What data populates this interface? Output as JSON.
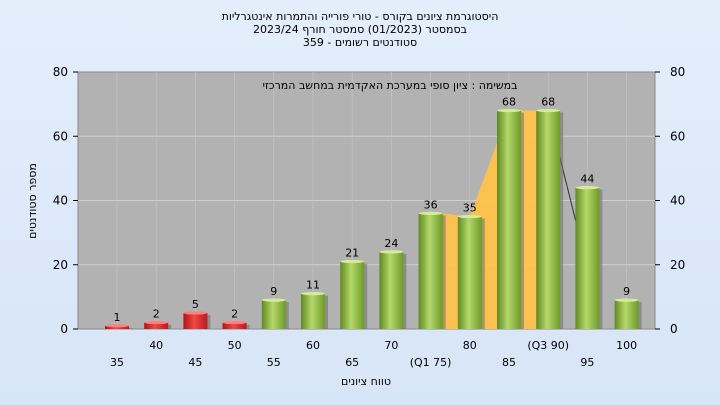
{
  "chart_data": {
    "type": "bar",
    "title_lines": [
      "היסטוגרמת ציונים בקורס - טורי פורייה והתמרות אינטגרליות",
      "בסמסטר  (01/2023)  סמסטר חורף  2023/24",
      "סטודנטים רשומים - 359"
    ],
    "subtitle": "במשימה : ציון סופי במערכת האקדמית במחשב המרכזי",
    "xlabel": "טווח ציונים",
    "ylabel": "מספר סטודנטים",
    "categories": [
      "35",
      "40",
      "45",
      "50",
      "55",
      "60",
      "65",
      "70",
      "(Q1 75)",
      "80",
      "85",
      "(Q3 90)",
      "95",
      "100"
    ],
    "values": [
      1,
      2,
      5,
      2,
      9,
      11,
      21,
      24,
      36,
      35,
      68,
      68,
      44,
      9
    ],
    "ylim": [
      0,
      80
    ],
    "yticks": [
      0,
      20,
      40,
      60,
      80
    ],
    "fail_threshold": 55,
    "grid": true,
    "colors": {
      "fail": "#e02727",
      "pass": "#8db83e",
      "quartile_band": "#ffc34d",
      "plot_bg": "#b2b2b2"
    }
  }
}
